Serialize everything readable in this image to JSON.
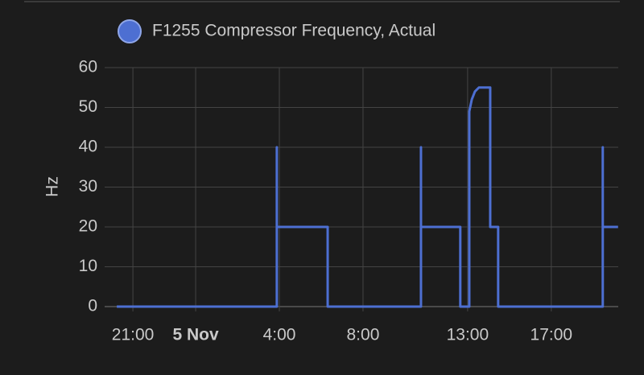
{
  "chart_data": {
    "type": "line",
    "y_label": "Hz",
    "x": [
      -3.77,
      3.88,
      3.88,
      3.88,
      6.31,
      6.31,
      10.77,
      10.77,
      10.77,
      12.65,
      12.65,
      13.08,
      13.08,
      13.08,
      13.2,
      13.35,
      13.54,
      14.08,
      14.08,
      14.08,
      14.46,
      14.46,
      19.46,
      19.46,
      19.46,
      20.19
    ],
    "series": [
      {
        "name": "F1255 Compressor Frequency, Actual",
        "color": "#4d6fd2",
        "values": [
          0,
          0,
          40,
          20,
          20,
          0,
          0,
          40,
          20,
          20,
          0,
          0,
          40,
          49,
          52,
          54,
          55,
          55,
          41,
          20,
          20,
          0,
          0,
          40,
          20,
          20
        ]
      }
    ],
    "xlim": [
      -3.85,
      20.2
    ],
    "xticks": [
      {
        "value": -3,
        "label": "21:00"
      },
      {
        "value": 0,
        "label": "5 Nov",
        "bold": true
      },
      {
        "value": 4,
        "label": "4:00"
      },
      {
        "value": 8,
        "label": "8:00"
      },
      {
        "value": 13,
        "label": "13:00"
      },
      {
        "value": 17,
        "label": "17:00"
      }
    ],
    "ylim": [
      0,
      60
    ],
    "yticks": [
      0,
      10,
      20,
      30,
      40,
      50,
      60
    ],
    "grid": true
  }
}
